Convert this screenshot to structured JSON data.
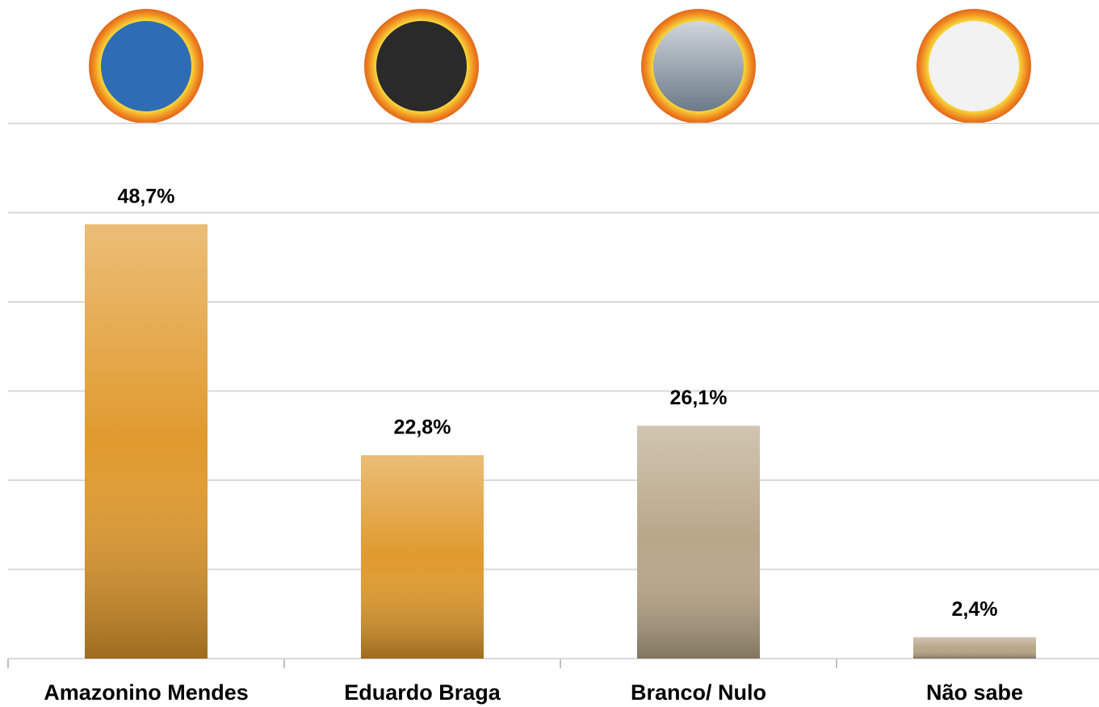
{
  "chart_data": {
    "type": "bar",
    "categories": [
      "Amazonino Mendes",
      "Eduardo Braga",
      "Branco/ Nulo",
      "Não sabe"
    ],
    "values": [
      48.7,
      22.8,
      26.1,
      2.4
    ],
    "value_labels": [
      "48,7%",
      "22,8%",
      "26,1%",
      "2,4%"
    ],
    "colors": [
      "#e09a2e",
      "#e09a2e",
      "#b8a688",
      "#b8a688"
    ],
    "ylim": [
      0,
      60
    ],
    "yticks": [
      0,
      10,
      20,
      30,
      40,
      50,
      60
    ],
    "grid": true
  }
}
